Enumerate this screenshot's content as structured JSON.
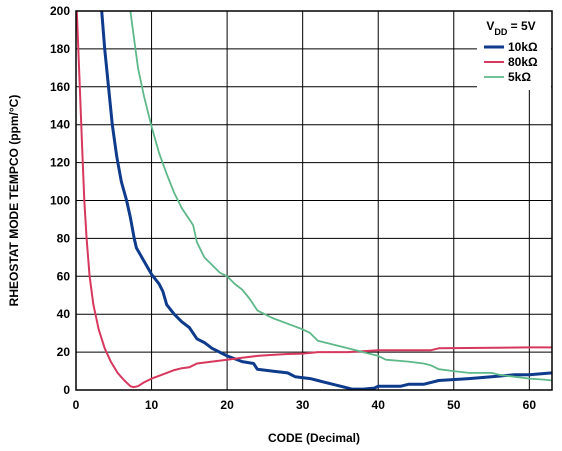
{
  "chart_data": {
    "type": "line",
    "xlabel": "CODE (Decimal)",
    "ylabel": "RHEOSTAT MODE TEMPCO (ppm/°C)",
    "xlim": [
      0,
      63
    ],
    "ylim": [
      0,
      200
    ],
    "x_ticks": [
      0,
      10,
      20,
      30,
      40,
      50,
      60
    ],
    "y_ticks": [
      0,
      20,
      40,
      60,
      80,
      100,
      120,
      140,
      160,
      180,
      200
    ],
    "x_tick_labels": [
      "0",
      "10",
      "20",
      "30",
      "40",
      "50",
      "60"
    ],
    "y_tick_labels": [
      "0",
      "20",
      "40",
      "60",
      "80",
      "100",
      "120",
      "140",
      "160",
      "180",
      "200"
    ],
    "grid": true,
    "legend_placement": "top-right",
    "legend_title": {
      "main": "V",
      "sub": "DD",
      "suffix": " = 5V"
    },
    "series": [
      {
        "name": "10kΩ",
        "color": "#0f3b8c",
        "width": 3,
        "points": [
          [
            3.4,
            200
          ],
          [
            3.8,
            180
          ],
          [
            4.3,
            160
          ],
          [
            4.8,
            140
          ],
          [
            5.4,
            123
          ],
          [
            6,
            110
          ],
          [
            6.7,
            100
          ],
          [
            7.2,
            91
          ],
          [
            7.7,
            80
          ],
          [
            8,
            75
          ],
          [
            9,
            68
          ],
          [
            10,
            61
          ],
          [
            11,
            56
          ],
          [
            11.5,
            52
          ],
          [
            12,
            45
          ],
          [
            13,
            40
          ],
          [
            14,
            36
          ],
          [
            15,
            33
          ],
          [
            16,
            27
          ],
          [
            17,
            25
          ],
          [
            18,
            22
          ],
          [
            19,
            20
          ],
          [
            20,
            18
          ],
          [
            22,
            15
          ],
          [
            23.5,
            14
          ],
          [
            24,
            11
          ],
          [
            26,
            10
          ],
          [
            28,
            9
          ],
          [
            29,
            7
          ],
          [
            31,
            6
          ],
          [
            32,
            5
          ],
          [
            33,
            4
          ],
          [
            34,
            3
          ],
          [
            35,
            2
          ],
          [
            36,
            1
          ],
          [
            36.5,
            0.5
          ],
          [
            38,
            0.5
          ],
          [
            39.5,
            1
          ],
          [
            40,
            2
          ],
          [
            43,
            2
          ],
          [
            44,
            3
          ],
          [
            46,
            3
          ],
          [
            47,
            4
          ],
          [
            48,
            5
          ],
          [
            52,
            6
          ],
          [
            55,
            7
          ],
          [
            58,
            8
          ],
          [
            60,
            8
          ],
          [
            63,
            9
          ]
        ]
      },
      {
        "name": "80kΩ",
        "color": "#d7385e",
        "width": 2,
        "points": [
          [
            0.1,
            200
          ],
          [
            0.5,
            160
          ],
          [
            0.8,
            130
          ],
          [
            1.1,
            100
          ],
          [
            1.4,
            80
          ],
          [
            1.8,
            60
          ],
          [
            2.3,
            45
          ],
          [
            3,
            32
          ],
          [
            3.8,
            22
          ],
          [
            4.6,
            15
          ],
          [
            5.5,
            9
          ],
          [
            6.4,
            5
          ],
          [
            7.2,
            2
          ],
          [
            7.6,
            1.5
          ],
          [
            8.2,
            2
          ],
          [
            9,
            4
          ],
          [
            10,
            6
          ],
          [
            11,
            7.5
          ],
          [
            12,
            9
          ],
          [
            13,
            10.5
          ],
          [
            14,
            11.5
          ],
          [
            15,
            12
          ],
          [
            16,
            14
          ],
          [
            18,
            15
          ],
          [
            20,
            16
          ],
          [
            21,
            16.5
          ],
          [
            22,
            17
          ],
          [
            24,
            18
          ],
          [
            26,
            18.5
          ],
          [
            28,
            19
          ],
          [
            30,
            19.2
          ],
          [
            32,
            20
          ],
          [
            36,
            20
          ],
          [
            40,
            21
          ],
          [
            47,
            21
          ],
          [
            48,
            22
          ],
          [
            60,
            22.5
          ],
          [
            63,
            22.5
          ]
        ]
      },
      {
        "name": "5kΩ",
        "color": "#5eb889",
        "width": 1.8,
        "points": [
          [
            7.2,
            200
          ],
          [
            7.6,
            188
          ],
          [
            8.2,
            170
          ],
          [
            9,
            155
          ],
          [
            10,
            139
          ],
          [
            11,
            125
          ],
          [
            12,
            114
          ],
          [
            13,
            104
          ],
          [
            14,
            96
          ],
          [
            15,
            90
          ],
          [
            15.5,
            87
          ],
          [
            16,
            78
          ],
          [
            17,
            70
          ],
          [
            18,
            66
          ],
          [
            19,
            62
          ],
          [
            20,
            60
          ],
          [
            21,
            56
          ],
          [
            22,
            53
          ],
          [
            23,
            48
          ],
          [
            24,
            42
          ],
          [
            26,
            38
          ],
          [
            28,
            35
          ],
          [
            30,
            32
          ],
          [
            31,
            30
          ],
          [
            32,
            26
          ],
          [
            34,
            24
          ],
          [
            36,
            22
          ],
          [
            38,
            20
          ],
          [
            40,
            18
          ],
          [
            41,
            16
          ],
          [
            44,
            15
          ],
          [
            46,
            14
          ],
          [
            47,
            13
          ],
          [
            48,
            11
          ],
          [
            50,
            10
          ],
          [
            52,
            9
          ],
          [
            55,
            9
          ],
          [
            56,
            8
          ],
          [
            58,
            7
          ],
          [
            60,
            6
          ],
          [
            62,
            5.5
          ],
          [
            63,
            5
          ]
        ]
      }
    ]
  }
}
